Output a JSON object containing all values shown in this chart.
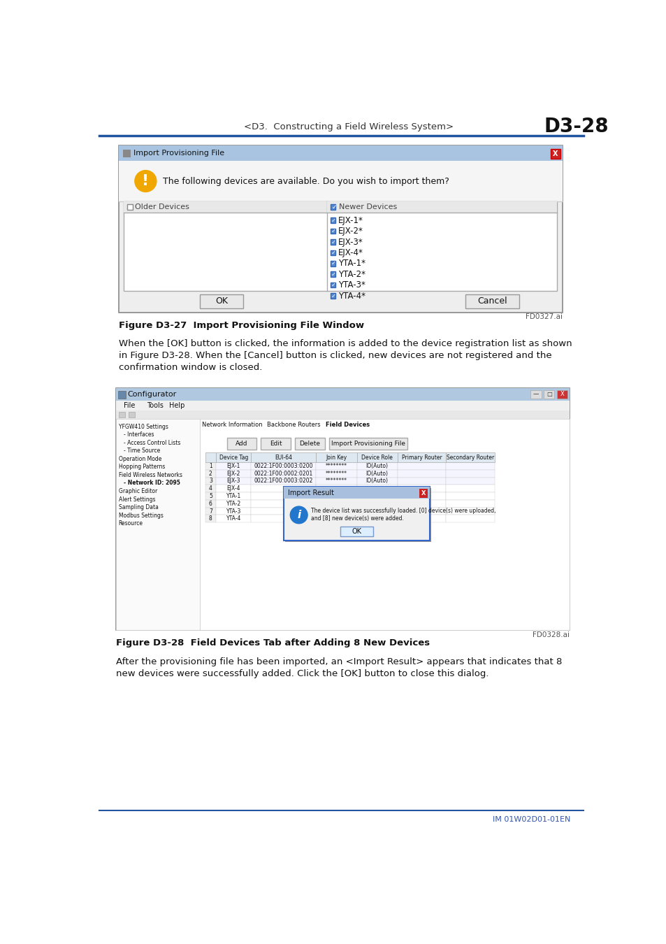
{
  "page_title": "<D3.  Constructing a Field Wireless System>",
  "page_number": "D3-28",
  "header_line_color": "#2255a0",
  "fig1_title": "Import Provisioning File",
  "fig1_message": "The following devices are available. Do you wish to import them?",
  "fig1_older_label": "Older Devices",
  "fig1_newer_label": "Newer Devices",
  "fig1_devices": [
    "EJX-1*",
    "EJX-2*",
    "EJX-3*",
    "EJX-4*",
    "YTA-1*",
    "YTA-2*",
    "YTA-3*",
    "YTA-4*"
  ],
  "fig1_ok_btn": "OK",
  "fig1_cancel_btn": "Cancel",
  "fig1_ref": "FD0327.ai",
  "fig1_caption": "Figure D3-27  Import Provisioning File Window",
  "body_text1_line1": "When the [OK] button is clicked, the information is added to the device registration list as shown",
  "body_text1_line2": "in Figure D3-28. When the [Cancel] button is clicked, new devices are not registered and the",
  "body_text1_line3": "confirmation window is closed.",
  "fig2_title": "Configurator",
  "fig2_ref": "FD0328.ai",
  "fig2_caption": "Figure D3-28  Field Devices Tab after Adding 8 New Devices",
  "body_text2_line1": "After the provisioning file has been imported, an <Import Result> appears that indicates that 8",
  "body_text2_line2": "new devices were successfully added. Click the [OK] button to close this dialog.",
  "footer_text": "IM 01W02D01-01EN",
  "bg_color": "#ffffff",
  "tree_items": [
    [
      0,
      "YFGW410 Settings"
    ],
    [
      1,
      "Interfaces"
    ],
    [
      1,
      "Access Control Lists"
    ],
    [
      1,
      "Time Source"
    ],
    [
      0,
      "Operation Mode"
    ],
    [
      0,
      "Hopping Patterns"
    ],
    [
      0,
      "Field Wireless Networks"
    ],
    [
      1,
      "Network ID: 2095"
    ],
    [
      0,
      "Graphic Editor"
    ],
    [
      0,
      "Alert Settings"
    ],
    [
      0,
      "Sampling Data"
    ],
    [
      0,
      "Modbus Settings"
    ],
    [
      0,
      "Resource"
    ]
  ],
  "table_cols": [
    "Device Tag",
    "EUI-64",
    "Join Key",
    "Device Role",
    "Primary Router",
    "Secondary Router"
  ],
  "table_col_widths": [
    65,
    120,
    75,
    75,
    90,
    90
  ],
  "row_data": [
    [
      "EJX-1",
      "0022:1F00:0003:0200",
      "********",
      "IO(Auto)",
      "",
      ""
    ],
    [
      "EJX-2",
      "0022:1F00:0002:0201",
      "********",
      "IO(Auto)",
      "",
      ""
    ],
    [
      "EJX-3",
      "0022:1F00:0003:0202",
      "********",
      "IO(Auto)",
      "",
      ""
    ],
    [
      "EJX-4",
      "",
      "",
      "",
      "",
      ""
    ],
    [
      "YTA-1",
      "",
      "",
      "",
      "",
      ""
    ],
    [
      "YTA-2",
      "",
      "",
      "",
      "",
      ""
    ],
    [
      "YTA-3",
      "",
      "",
      "",
      "",
      ""
    ],
    [
      "YTA-4",
      "",
      "",
      "",
      "",
      ""
    ]
  ]
}
